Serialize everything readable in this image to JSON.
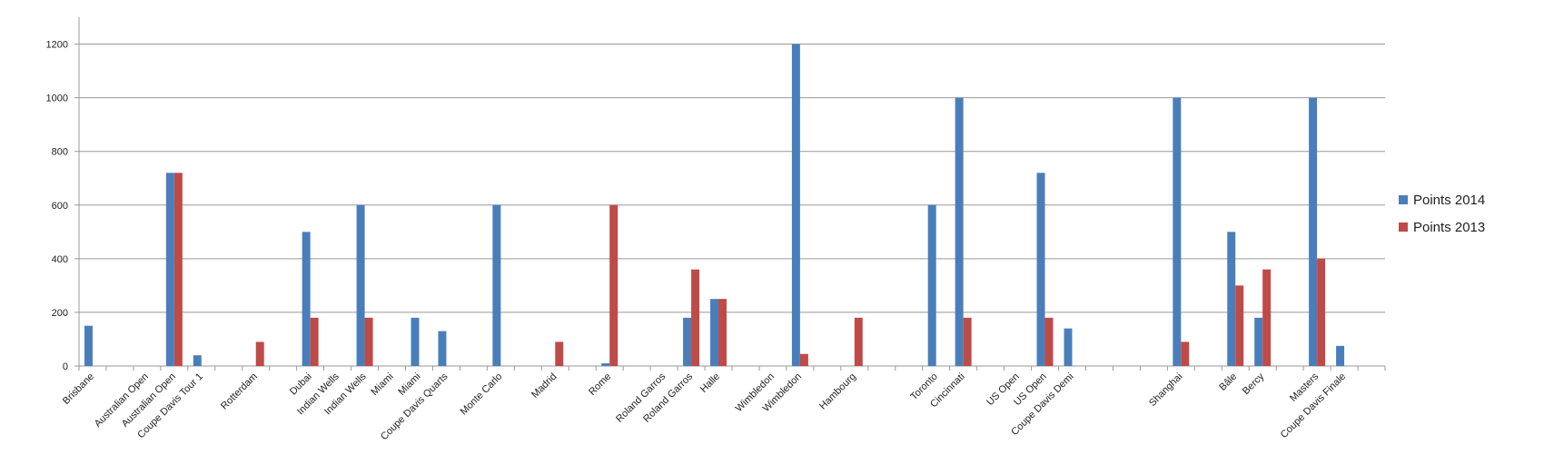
{
  "chart_data": {
    "type": "bar",
    "categories": [
      "Brisbane",
      null,
      "Australian Open",
      "Australian Open",
      "Coupe Davis Tour 1",
      null,
      "Rotterdam",
      null,
      "Dubai",
      "Indian Wells",
      "Indian Wells",
      "Miami",
      "Miami",
      "Coupe Davis Quarts",
      null,
      "Monte Carlo",
      null,
      "Madrid",
      null,
      "Rome",
      null,
      "Roland Garros",
      "Roland Garros",
      "Halle",
      null,
      "Wimbledon",
      "Wimbledon",
      null,
      "Hambourg",
      null,
      null,
      "Toronto",
      "Cincinnati",
      null,
      "US Open",
      "US Open",
      "Coupe Davis Demi",
      null,
      null,
      null,
      "Shanghai",
      null,
      "Bâle",
      "Bercy",
      null,
      "Masters",
      "Coupe Davis Finale",
      null
    ],
    "series": [
      {
        "name": "Points 2014",
        "color": "#4a7ebb",
        "values": [
          150,
          null,
          null,
          720,
          40,
          null,
          null,
          null,
          500,
          null,
          600,
          null,
          180,
          130,
          null,
          600,
          null,
          null,
          null,
          10,
          null,
          null,
          180,
          250,
          null,
          null,
          1200,
          null,
          null,
          null,
          null,
          600,
          1000,
          null,
          null,
          720,
          140,
          null,
          null,
          null,
          1000,
          null,
          500,
          180,
          null,
          1000,
          75,
          null
        ]
      },
      {
        "name": "Points 2013",
        "color": "#be4b48",
        "values": [
          null,
          null,
          null,
          720,
          null,
          null,
          90,
          null,
          180,
          null,
          180,
          null,
          null,
          null,
          null,
          null,
          null,
          90,
          null,
          600,
          null,
          null,
          360,
          250,
          null,
          null,
          45,
          null,
          180,
          null,
          null,
          null,
          180,
          null,
          null,
          180,
          null,
          null,
          null,
          null,
          90,
          null,
          300,
          360,
          null,
          400,
          null,
          null
        ]
      }
    ],
    "ylim": [
      0,
      1300
    ],
    "yticks": [
      0,
      200,
      400,
      600,
      800,
      1000,
      1200
    ],
    "grid": true,
    "legend": "right"
  }
}
